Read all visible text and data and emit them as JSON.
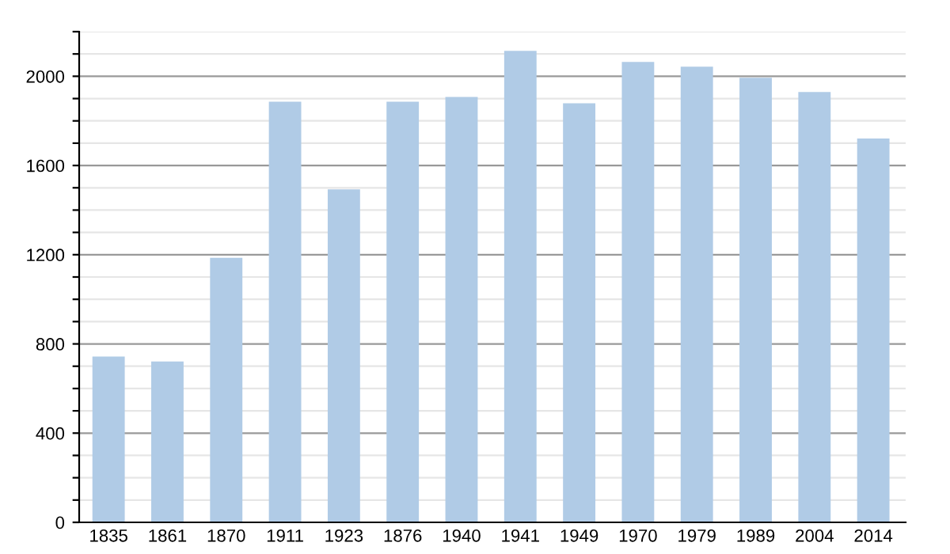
{
  "chart_data": {
    "type": "bar",
    "categories": [
      "1835",
      "1861",
      "1870",
      "1911",
      "1923",
      "1876",
      "1940",
      "1941",
      "1949",
      "1970",
      "1979",
      "1989",
      "2004",
      "2014"
    ],
    "values": [
      743,
      721,
      1186,
      1886,
      1493,
      1886,
      1907,
      2114,
      1879,
      2064,
      2043,
      1993,
      1929,
      1721
    ],
    "color": "#b0cbe6",
    "ylim": [
      0,
      2200
    ],
    "yticks": [
      0,
      {
        "value": 100,
        "label": null
      },
      {
        "value": 200,
        "label": null
      },
      {
        "value": 300,
        "label": null
      },
      400,
      {
        "value": 500,
        "label": null
      },
      {
        "value": 600,
        "label": null
      },
      {
        "value": 700,
        "label": null
      },
      800,
      {
        "value": 900,
        "label": null
      },
      {
        "value": 1000,
        "label": null
      },
      {
        "value": 1100,
        "label": null
      },
      1200,
      {
        "value": 1300,
        "label": null
      },
      {
        "value": 1400,
        "label": null
      },
      {
        "value": 1500,
        "label": null
      },
      1600,
      {
        "value": 1700,
        "label": null
      },
      {
        "value": 1800,
        "label": null
      },
      {
        "value": 1900,
        "label": null
      },
      2000,
      {
        "value": 2100,
        "label": null
      },
      {
        "value": 2200,
        "label": null
      }
    ],
    "grid": "y"
  }
}
